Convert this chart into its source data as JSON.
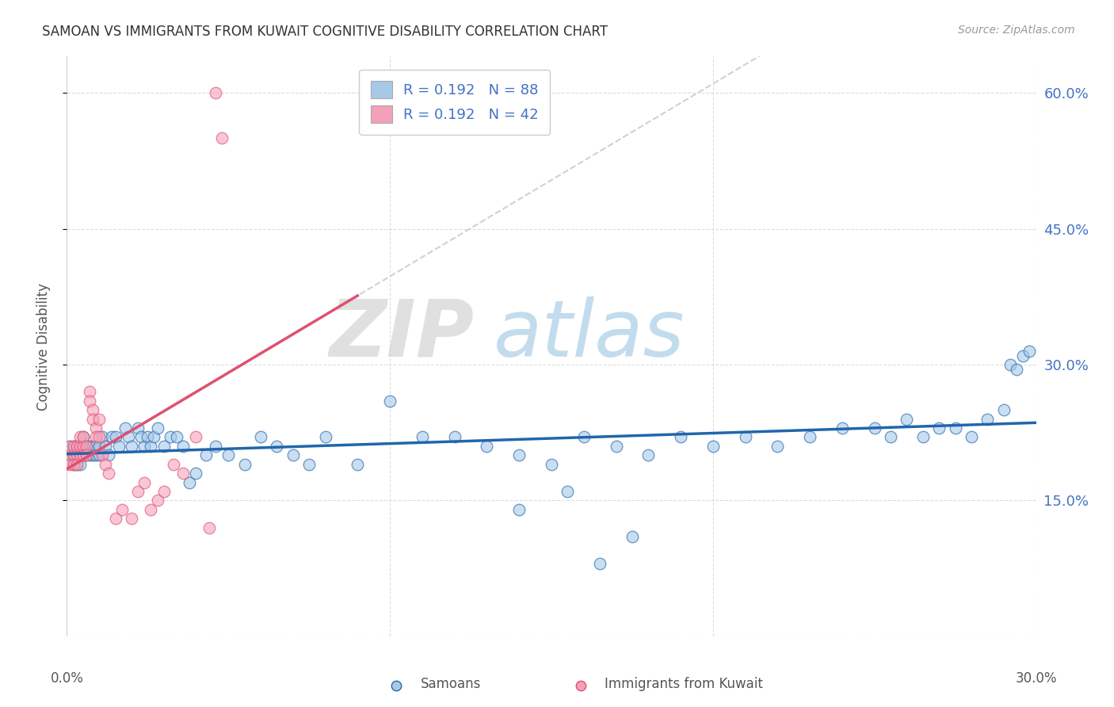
{
  "title": "SAMOAN VS IMMIGRANTS FROM KUWAIT COGNITIVE DISABILITY CORRELATION CHART",
  "source": "Source: ZipAtlas.com",
  "ylabel": "Cognitive Disability",
  "xlim": [
    0.0,
    0.3
  ],
  "ylim": [
    0.0,
    0.64
  ],
  "blue_R": 0.192,
  "blue_N": 88,
  "pink_R": 0.192,
  "pink_N": 42,
  "blue_color": "#a8c8e8",
  "pink_color": "#f4a0b8",
  "trendline_blue_color": "#2166ac",
  "trendline_pink_color": "#e05070",
  "trendline_dashed_color": "#cccccc",
  "legend_label_blue": "Samoans",
  "legend_label_pink": "Immigrants from Kuwait",
  "background_color": "#ffffff",
  "watermark_zip": "ZIP",
  "watermark_atlas": "atlas",
  "ytick_vals": [
    0.15,
    0.3,
    0.45,
    0.6
  ],
  "ytick_labels": [
    "15.0%",
    "30.0%",
    "45.0%",
    "60.0%"
  ],
  "blue_x": [
    0.001,
    0.001,
    0.002,
    0.002,
    0.002,
    0.003,
    0.003,
    0.003,
    0.004,
    0.004,
    0.004,
    0.005,
    0.005,
    0.005,
    0.006,
    0.006,
    0.007,
    0.007,
    0.008,
    0.008,
    0.009,
    0.009,
    0.01,
    0.01,
    0.011,
    0.012,
    0.013,
    0.014,
    0.015,
    0.016,
    0.018,
    0.019,
    0.02,
    0.022,
    0.023,
    0.024,
    0.025,
    0.026,
    0.027,
    0.028,
    0.03,
    0.032,
    0.034,
    0.036,
    0.038,
    0.04,
    0.043,
    0.046,
    0.05,
    0.055,
    0.06,
    0.065,
    0.07,
    0.075,
    0.08,
    0.09,
    0.1,
    0.11,
    0.12,
    0.13,
    0.14,
    0.15,
    0.16,
    0.17,
    0.18,
    0.19,
    0.2,
    0.21,
    0.22,
    0.23,
    0.24,
    0.25,
    0.255,
    0.26,
    0.265,
    0.27,
    0.275,
    0.28,
    0.285,
    0.29,
    0.292,
    0.294,
    0.296,
    0.298,
    0.14,
    0.155,
    0.165,
    0.175
  ],
  "blue_y": [
    0.2,
    0.21,
    0.2,
    0.19,
    0.21,
    0.2,
    0.21,
    0.19,
    0.2,
    0.21,
    0.19,
    0.2,
    0.21,
    0.22,
    0.2,
    0.21,
    0.21,
    0.2,
    0.2,
    0.21,
    0.21,
    0.2,
    0.21,
    0.2,
    0.22,
    0.21,
    0.2,
    0.22,
    0.22,
    0.21,
    0.23,
    0.22,
    0.21,
    0.23,
    0.22,
    0.21,
    0.22,
    0.21,
    0.22,
    0.23,
    0.21,
    0.22,
    0.22,
    0.21,
    0.17,
    0.18,
    0.2,
    0.21,
    0.2,
    0.19,
    0.22,
    0.21,
    0.2,
    0.19,
    0.22,
    0.19,
    0.26,
    0.22,
    0.22,
    0.21,
    0.2,
    0.19,
    0.22,
    0.21,
    0.2,
    0.22,
    0.21,
    0.22,
    0.21,
    0.22,
    0.23,
    0.23,
    0.22,
    0.24,
    0.22,
    0.23,
    0.23,
    0.22,
    0.24,
    0.25,
    0.3,
    0.295,
    0.31,
    0.315,
    0.14,
    0.16,
    0.08,
    0.11
  ],
  "pink_x": [
    0.001,
    0.001,
    0.001,
    0.002,
    0.002,
    0.002,
    0.003,
    0.003,
    0.003,
    0.004,
    0.004,
    0.004,
    0.005,
    0.005,
    0.005,
    0.006,
    0.006,
    0.007,
    0.007,
    0.008,
    0.008,
    0.009,
    0.009,
    0.01,
    0.01,
    0.011,
    0.012,
    0.013,
    0.015,
    0.017,
    0.02,
    0.022,
    0.024,
    0.026,
    0.028,
    0.03,
    0.033,
    0.036,
    0.04,
    0.044,
    0.046,
    0.048
  ],
  "pink_y": [
    0.2,
    0.21,
    0.19,
    0.2,
    0.21,
    0.19,
    0.2,
    0.21,
    0.19,
    0.2,
    0.21,
    0.22,
    0.21,
    0.2,
    0.22,
    0.21,
    0.2,
    0.27,
    0.26,
    0.25,
    0.24,
    0.23,
    0.22,
    0.24,
    0.22,
    0.2,
    0.19,
    0.18,
    0.13,
    0.14,
    0.13,
    0.16,
    0.17,
    0.14,
    0.15,
    0.16,
    0.19,
    0.18,
    0.22,
    0.12,
    0.6,
    0.55
  ]
}
